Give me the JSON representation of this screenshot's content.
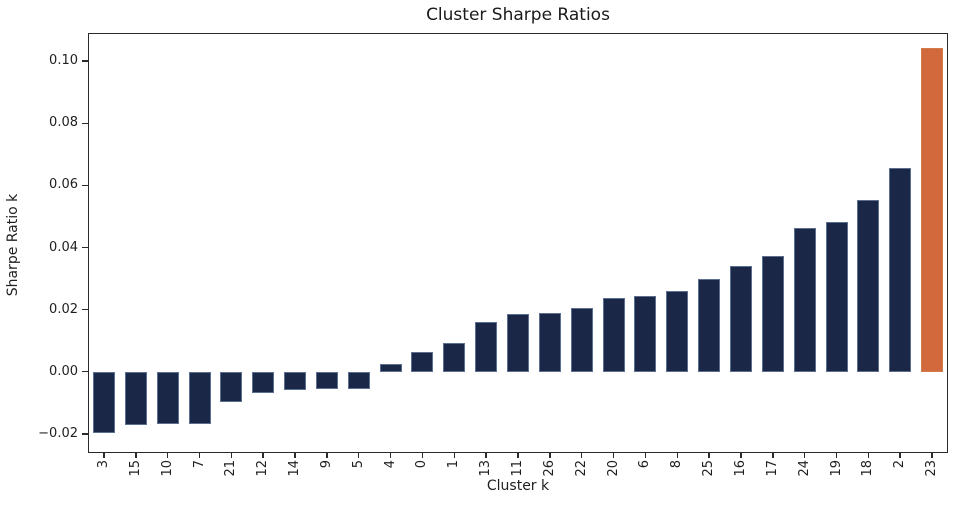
{
  "chart_data": {
    "type": "bar",
    "title": "Cluster Sharpe Ratios",
    "xlabel": "Cluster k",
    "ylabel": "Sharpe Ratio k",
    "categories": [
      "3",
      "15",
      "10",
      "7",
      "21",
      "12",
      "14",
      "9",
      "5",
      "4",
      "0",
      "1",
      "13",
      "11",
      "26",
      "22",
      "20",
      "6",
      "8",
      "25",
      "16",
      "17",
      "24",
      "19",
      "18",
      "2",
      "23"
    ],
    "values": [
      -0.0197,
      -0.0172,
      -0.0169,
      -0.0168,
      -0.0099,
      -0.0068,
      -0.006,
      -0.0057,
      -0.0055,
      0.0025,
      0.0064,
      0.0093,
      0.0161,
      0.0185,
      0.019,
      0.0206,
      0.0237,
      0.0244,
      0.0261,
      0.0298,
      0.0339,
      0.0373,
      0.0464,
      0.0482,
      0.0552,
      0.0657,
      0.1043
    ],
    "ylim": [
      -0.0262,
      0.1091
    ],
    "yticks": [
      {
        "label": "0.10",
        "value": 0.1
      },
      {
        "label": "0.08",
        "value": 0.08
      },
      {
        "label": "0.06",
        "value": 0.06
      },
      {
        "label": "0.04",
        "value": 0.04
      },
      {
        "label": "0.02",
        "value": 0.02
      },
      {
        "label": "0.00",
        "value": 0.0
      },
      {
        "label": "−0.02",
        "value": -0.02
      }
    ],
    "grid": false,
    "legend": null,
    "bar_color": "#1a2747",
    "highlight_color": "#d2693c",
    "highlight_category": "23"
  }
}
